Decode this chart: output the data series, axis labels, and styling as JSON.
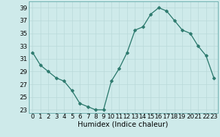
{
  "title": "",
  "x": [
    0,
    1,
    2,
    3,
    4,
    5,
    6,
    7,
    8,
    9,
    10,
    11,
    12,
    13,
    14,
    15,
    16,
    17,
    18,
    19,
    20,
    21,
    22,
    23
  ],
  "y": [
    32,
    30,
    29,
    28,
    27.5,
    26,
    24,
    23.5,
    23,
    23,
    27.5,
    29.5,
    32,
    35.5,
    36,
    38,
    39,
    38.5,
    37,
    35.5,
    35,
    33,
    31.5,
    28
  ],
  "xlabel": "Humidex (Indice chaleur)",
  "ylim": [
    22.5,
    40
  ],
  "yticks": [
    23,
    25,
    27,
    29,
    31,
    33,
    35,
    37,
    39
  ],
  "xticks": [
    0,
    1,
    2,
    3,
    4,
    5,
    6,
    7,
    8,
    9,
    10,
    11,
    12,
    13,
    14,
    15,
    16,
    17,
    18,
    19,
    20,
    21,
    22,
    23
  ],
  "xlim": [
    -0.5,
    23.5
  ],
  "line_color": "#2d7a6e",
  "bg_color": "#ceeaea",
  "grid_color_major": "#b8d8d8",
  "grid_color_minor": "#b8d8d8",
  "marker": "D",
  "marker_size": 2.5,
  "line_width": 1.0,
  "tick_fontsize": 6.5,
  "xlabel_fontsize": 7.5
}
